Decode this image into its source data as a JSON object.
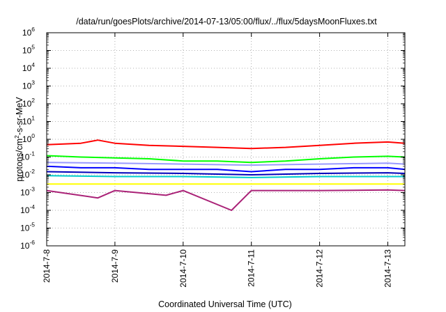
{
  "chart_data": {
    "type": "line",
    "title": "/data/run/goesPlots/archive/2014-07-13/05:00/flux/../flux/5daysMoonFluxes.txt",
    "xlabel": "Coordinated Universal Time (UTC)",
    "ylabel": "protons/cm2-s-sr-MeV",
    "ylabel_parts": {
      "base": "protons/cm",
      "sup": "2",
      "rest": "-s-sr-MeV"
    },
    "x_scale": "time",
    "xlim": [
      "2014-07-08T00:00",
      "2014-07-13T06:00"
    ],
    "x_ticks": [
      "2014-7-8",
      "2014-7-9",
      "2014-7-10",
      "2014-7-11",
      "2014-7-12",
      "2014-7-13"
    ],
    "y_scale": "log",
    "ylim": [
      1e-06,
      1000000.0
    ],
    "y_ticks": [
      {
        "base": "10",
        "exp": "6"
      },
      {
        "base": "10",
        "exp": "5"
      },
      {
        "base": "10",
        "exp": "4"
      },
      {
        "base": "10",
        "exp": "3"
      },
      {
        "base": "10",
        "exp": "2"
      },
      {
        "base": "10",
        "exp": "1"
      },
      {
        "base": "10",
        "exp": "0"
      },
      {
        "base": "10",
        "exp": "-1"
      },
      {
        "base": "10",
        "exp": "-2"
      },
      {
        "base": "10",
        "exp": "-3"
      },
      {
        "base": "10",
        "exp": "-4"
      },
      {
        "base": "10",
        "exp": "-5"
      },
      {
        "base": "10",
        "exp": "-6"
      }
    ],
    "grid": true,
    "legend": "none",
    "series": [
      {
        "color": "#ff0000",
        "x": [
          "2014-07-08T00:00",
          "2014-07-08T12:00",
          "2014-07-08T18:00",
          "2014-07-09T00:00",
          "2014-07-09T12:00",
          "2014-07-10T00:00",
          "2014-07-10T12:00",
          "2014-07-11T00:00",
          "2014-07-11T12:00",
          "2014-07-12T00:00",
          "2014-07-12T12:00",
          "2014-07-13T00:00",
          "2014-07-13T06:00"
        ],
        "y": [
          0.5,
          0.6,
          0.9,
          0.6,
          0.45,
          0.4,
          0.35,
          0.3,
          0.35,
          0.45,
          0.6,
          0.7,
          0.6
        ]
      },
      {
        "color": "#00ff00",
        "x": [
          "2014-07-08T00:00",
          "2014-07-08T12:00",
          "2014-07-09T00:00",
          "2014-07-09T12:00",
          "2014-07-10T00:00",
          "2014-07-10T12:00",
          "2014-07-11T00:00",
          "2014-07-11T12:00",
          "2014-07-12T00:00",
          "2014-07-12T12:00",
          "2014-07-13T00:00",
          "2014-07-13T06:00"
        ],
        "y": [
          0.12,
          0.1,
          0.09,
          0.08,
          0.06,
          0.06,
          0.05,
          0.06,
          0.08,
          0.1,
          0.11,
          0.1
        ]
      },
      {
        "color": "#9999ff",
        "x": [
          "2014-07-08T00:00",
          "2014-07-09T00:00",
          "2014-07-10T00:00",
          "2014-07-11T00:00",
          "2014-07-12T00:00",
          "2014-07-13T00:00",
          "2014-07-13T06:00"
        ],
        "y": [
          0.05,
          0.045,
          0.04,
          0.035,
          0.04,
          0.045,
          0.04
        ]
      },
      {
        "color": "#0000ff",
        "x": [
          "2014-07-08T00:00",
          "2014-07-08T12:00",
          "2014-07-09T00:00",
          "2014-07-09T12:00",
          "2014-07-10T00:00",
          "2014-07-10T12:00",
          "2014-07-11T00:00",
          "2014-07-11T12:00",
          "2014-07-12T00:00",
          "2014-07-12T12:00",
          "2014-07-13T00:00",
          "2014-07-13T06:00"
        ],
        "y": [
          0.03,
          0.025,
          0.025,
          0.02,
          0.02,
          0.02,
          0.015,
          0.02,
          0.02,
          0.025,
          0.025,
          0.02
        ]
      },
      {
        "color": "#0000bb",
        "x": [
          "2014-07-08T00:00",
          "2014-07-09T00:00",
          "2014-07-10T00:00",
          "2014-07-11T00:00",
          "2014-07-12T00:00",
          "2014-07-13T00:00",
          "2014-07-13T06:00"
        ],
        "y": [
          0.015,
          0.013,
          0.012,
          0.01,
          0.012,
          0.013,
          0.012
        ]
      },
      {
        "color": "#00cccc",
        "x": [
          "2014-07-08T00:00",
          "2014-07-09T00:00",
          "2014-07-10T00:00",
          "2014-07-11T00:00",
          "2014-07-12T00:00",
          "2014-07-13T00:00",
          "2014-07-13T06:00"
        ],
        "y": [
          0.009,
          0.008,
          0.008,
          0.007,
          0.008,
          0.008,
          0.008
        ]
      },
      {
        "color": "#ffff00",
        "x": [
          "2014-07-08T00:00",
          "2014-07-09T00:00",
          "2014-07-10T00:00",
          "2014-07-11T00:00",
          "2014-07-12T00:00",
          "2014-07-13T00:00",
          "2014-07-13T06:00"
        ],
        "y": [
          0.003,
          0.003,
          0.003,
          0.003,
          0.003,
          0.003,
          0.003
        ]
      },
      {
        "color": "#aa2277",
        "x": [
          "2014-07-08T00:00",
          "2014-07-08T18:00",
          "2014-07-09T00:00",
          "2014-07-09T18:00",
          "2014-07-10T00:00",
          "2014-07-10T17:00",
          "2014-07-11T00:00",
          "2014-07-12T00:00",
          "2014-07-13T00:00",
          "2014-07-13T06:00"
        ],
        "y": [
          0.0013,
          0.0005,
          0.0013,
          0.0007,
          0.0013,
          0.0001,
          0.0013,
          0.0013,
          0.0014,
          0.0013
        ]
      }
    ]
  }
}
